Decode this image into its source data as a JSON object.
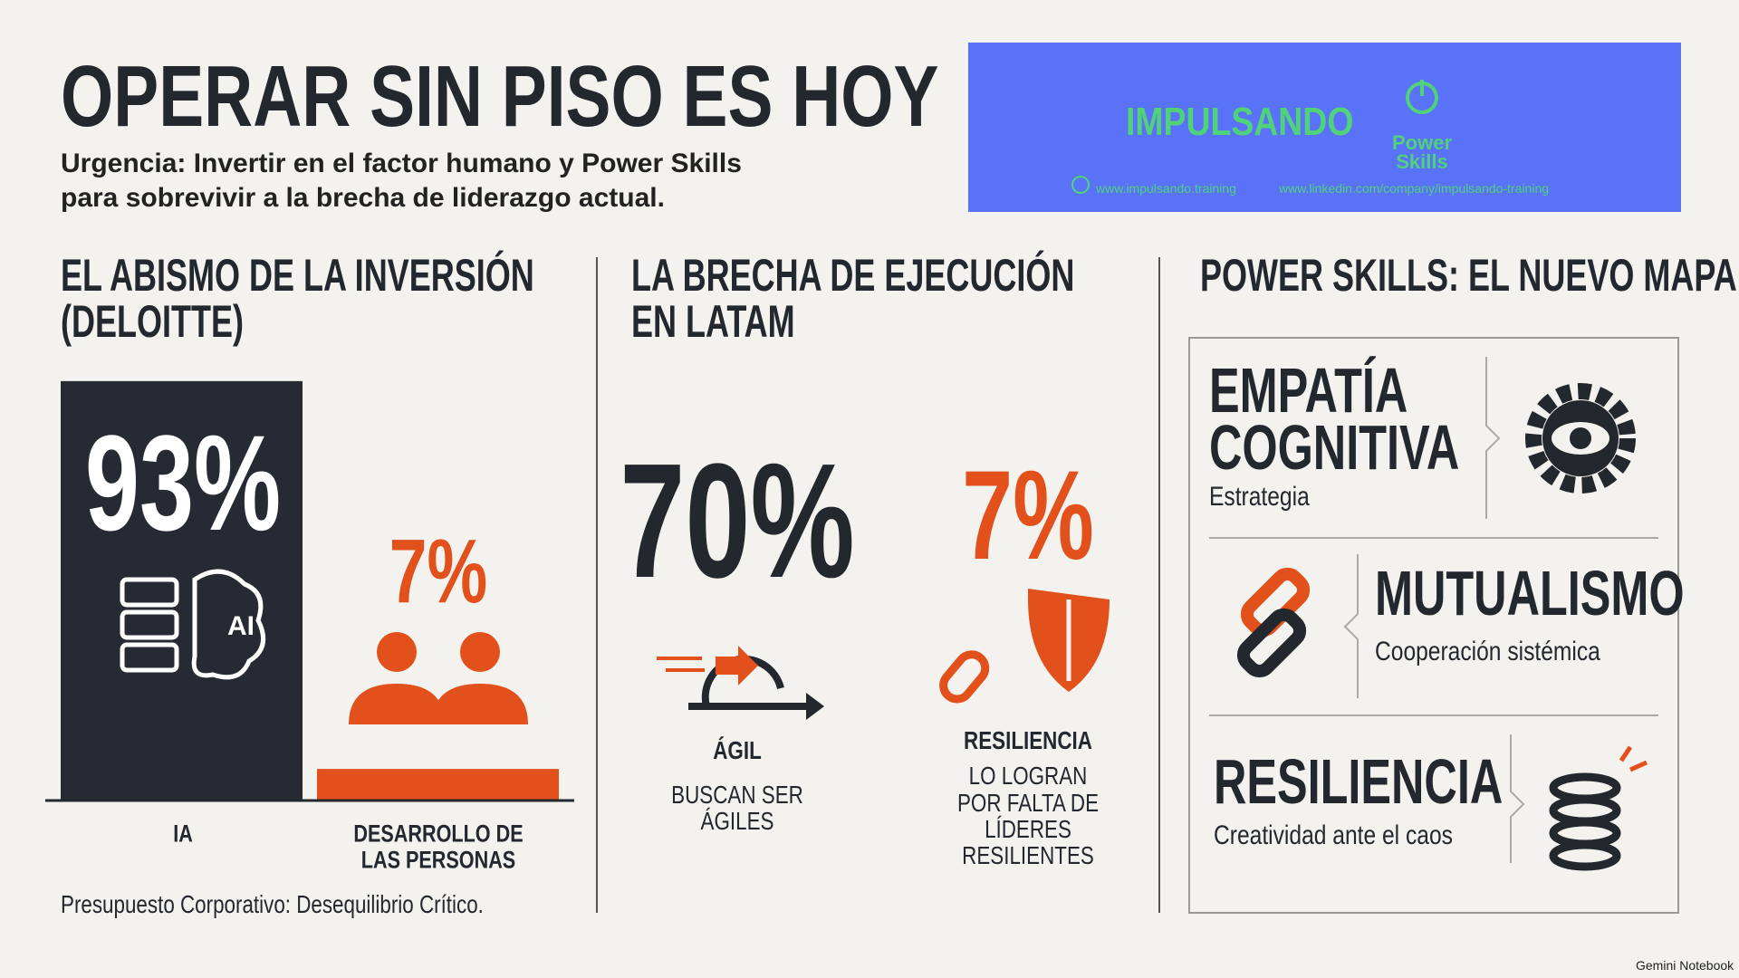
{
  "header": {
    "title": "OPERAR SIN PISO ES HOY",
    "subtitle": [
      "Urgencia: Invertir en el factor humano y Power Skills",
      "para sobrevivir a la brecha de liderazgo actual."
    ]
  },
  "logo": {
    "brand": "IMPULSANDO",
    "product": [
      "Power",
      "Skills"
    ],
    "links": [
      "www.impulsando.training",
      "www.linkedin.com/company/impulsando-training"
    ]
  },
  "investment": {
    "heading": [
      "EL ABISMO DE LA INVERSIÓN",
      "(DELOITTE)"
    ],
    "categories": [
      [
        "IA"
      ],
      [
        "DESARROLLO DE",
        "LAS PERSONAS"
      ]
    ],
    "values": [
      93,
      7
    ],
    "value_labels": [
      "93%",
      "7%"
    ],
    "icon_text": "AI",
    "note": "Presupuesto Corporativo: Desequilibrio Crítico."
  },
  "execution": {
    "heading": [
      "LA BRECHA DE EJECUCIÓN",
      "EN LATAM"
    ],
    "stats": [
      {
        "value": "70%",
        "label": "ÁGIL",
        "caption": [
          "BUSCAN SER",
          "ÁGILES"
        ]
      },
      {
        "value": "7%",
        "label": "RESILIENCIA",
        "caption": [
          "LO LOGRAN",
          "POR FALTA DE",
          "LÍDERES",
          "RESILIENTES"
        ]
      }
    ]
  },
  "power_skills": {
    "heading": "POWER SKILLS: EL NUEVO MAPA",
    "items": [
      {
        "name": [
          "EMPATÍA",
          "COGNITIVA"
        ],
        "desc": "Estrategia"
      },
      {
        "name": [
          "MUTUALISMO"
        ],
        "desc": "Cooperación sistémica"
      },
      {
        "name": [
          "RESILIENCIA"
        ],
        "desc": "Creatividad ante el caos"
      }
    ]
  },
  "footer": "Gemini Notebook"
}
